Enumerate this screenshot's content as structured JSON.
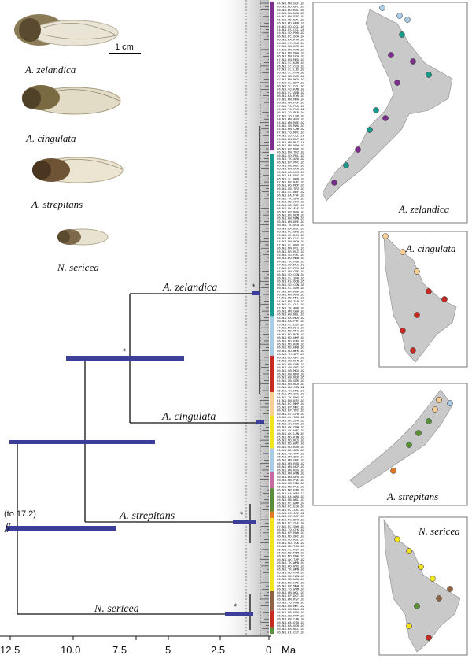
{
  "photos": {
    "scale_bar_label": "1 cm",
    "species": [
      "A. zelandica",
      "A. cingulata",
      "A. strepitans",
      "N. sericea"
    ]
  },
  "tree": {
    "clades": {
      "zelandica": "A. zelandica",
      "cingulata": "A. cingulata",
      "strepitans": "A. strepitans",
      "sericea": "N. sericea"
    },
    "root_note": "(to 17.2)",
    "axis": {
      "unit": "Ma",
      "ticks": [
        "12.5",
        "10.0",
        "7.5",
        "5",
        "2.5",
        "0"
      ]
    },
    "support_mark": "*",
    "tips": [
      "04.NZ.NN.GLF.01",
      "06.NZ.WD.OMC.01",
      "06.NZ.WD.KEL.05",
      "04.NZ.NN.NGA.03",
      "04.NZ.NN.PIG.01",
      "06.NZ.WD.BAL.02",
      "06.NZ.WD.HRB.03",
      "04.NZ.SD.COL.05",
      "04.NZ.DS.COL.20",
      "04.NZ.SD.MYD.02",
      "06.NZ.BC.OCH.04",
      "06.NZ.KA.KYR.02",
      "06.NZ.SC.CLU.04",
      "07.NZ.NN.KFR.01",
      "04.NZ.WN.RFN.01",
      "07.NZ.NN.DWA.01",
      "06.NZ.NN.UCA.01",
      "07.NZ.DN.MPA.03",
      "07.NZ.SC.KAH.01",
      "06.NZ.SC.CLU.01",
      "07.NZ.SL.LIS.02",
      "06.NZ.SC.PPA.02",
      "07.NZ.MB.RAR.02",
      "07.NZ.NN.NGA.01",
      "07.NZ.SL.BNP.03",
      "06.NZ.SL.CCL.03",
      "04.NZ.CO.KAB.02",
      "06.NZ.SC.ABB.02",
      "06.NZ.KA.KYR.01",
      "07.NZ.NN.MPA.04",
      "06.NZ.NN.PLF.01",
      "07.NZ.TO.PUR.01",
      "06.NZ.TO.PUR.02",
      "06.NZ.TO.PUR.04",
      "07.NZ.TO.LBP.01",
      "04.NZ.WN.APU.01",
      "04.NZ.WN.RBE.02",
      "04.NZ.GB.MAG.01",
      "04.NZ.WN.CAW.02",
      "07.NZ.TO.RMI.01",
      "04.NZ.SD.COL.20",
      "06.NZ.WN.BUT.09",
      "05.NZ.WN.BUT.10",
      "06.NZ.WN.HPW.01",
      "06.NZ.BP.MYD.03",
      "06.NZ.DN.TRZ.02",
      "06.NZ.SD.PNL.01",
      "06.NZ.TK.APU.02",
      "06.NZ.BP.PRC.01",
      "06.NZ.HB.ABC.02",
      "06.NZ.NN.UCA.02",
      "06.NZ.KA.LNS.01",
      "06.NZ.KA.ENS.01",
      "06.NZ.SL.BMB.07",
      "07.NZ.BR.RAI.01",
      "06.NZ.WO.MCP.01",
      "06.NZ.GB.TRZ.01",
      "07.NZ.SL.BNF.02",
      "06.NZ.KA.FYF.03",
      "04.NZ.TK.SMR.01",
      "06.NZ.WD.HPA.02",
      "06.NZ.HB.SBP.01",
      "06.NZ.DK.AVE.01",
      "06.NZ.BP.REA.01",
      "06.NZ.BR.RDM.01",
      "06.NZ.HB.MAN.01",
      "06.NZ.WN.DRE.01",
      "06.NZ.TK.UCA.03",
      "06.NZ.KA.BSC.01",
      "06.NZ.NC.GNU.01",
      "05.NZ.KE.DOH.01",
      "06.NZ.MD.CLI.01",
      "04.NZ.DN.NOW.01",
      "07.NZ.CL.KKU.02",
      "06.NZ.NN.PGL.01",
      "06.NZ.BR.RUI.01",
      "04.NZ.SD.PAC.01",
      "06.NZ.WO.MBW.01",
      "04.NZ.TK.FBR.01",
      "07.NZ.SD.NVS.02",
      "07.NZ.BP.PRC.02",
      "06.NZ.DN.CRE.01",
      "06.NZ.SD.CON.04",
      "06.NZ.CL.SRR.01",
      "06.NZ.BS.OGB.05",
      "06.NZ.SD.CON.05",
      "06.NZ.CL.SBR.04",
      "07.NZ.BR.RBR.01",
      "06.NZ.WN.APU.03",
      "04.NZ.WD.MRL.03",
      "04.NZ.NN.TLP.01",
      "06.NZ.SL.CUL.03",
      "07.NZ.TK.AKR.02",
      "06.NZ.WN.GBH.03",
      "06.NZ.HB.NEL.01",
      "04.NZ.KA.MUR.02",
      "06.NZ.KA.PYF.01",
      "05.NZ.CL.LBV.01",
      "04.NZ.NN.KHA.01",
      "06.NZ.ND.PHI.01",
      "06.NZ.ND.BCN.01",
      "06.NZ.ND.HKP.01",
      "06.NZ.ND.PAV.02",
      "06.NZ.ND.KER.01",
      "06.NZ.ND.HRB.01",
      "06.NZ.ND.WHK.01",
      "06.NZ.TK.GRT.03",
      "06.NZ.ND.GRT.02",
      "06.NZ.HB.KHN.04",
      "06.NZ.HB.GBR.03",
      "06.NZ.GB.ORI.01",
      "06.NZ.GB.MOG.02",
      "06.NZ.HB.BRO.02",
      "06.NZ.HB.KDR.05",
      "04.NZ.GB.GBR.01",
      "06.NZ.HB.KDR.01",
      "05.NZ.WN.CON.02",
      "05.NZ.TK.WPE.01",
      "05.NZ.WN.OPE.03",
      "06.NZ.TK.RWY.02",
      "01.NZ.NN.NTV.01",
      "06.NZ.NC.MKP.04",
      "05.NZ.BP.MNC.01",
      "06.NZ.BP.TRI.01",
      "06.NZ.CL.CHR.01",
      "06.NZ.CL.TAU.02",
      "06.NZ.AK.ZHR.02",
      "06.NZ.AK.HER.01",
      "06.NZ.AK.CRW.03",
      "06.NZ.AK.WAI.01",
      "06.NZ.AK.LAN.01",
      "05.NZ.ND.KIN.03",
      "06.NZ.ND.RUS.01",
      "06.NZ.ND.WAI.02",
      "06.NZ.ND.KER.01",
      "06.NZ.ND.OBR.03",
      "06.NZ.TO.TPT.02",
      "06.NZ.WN.ORI.04",
      "06.NZ.WN.GRE.01",
      "06.NZ.WN.RED.02",
      "06.NZ.WN.HOP.01",
      "06.NZ.WN.REG.01",
      "06.NZ.WN.WIN.02",
      "06.NZ.WN.ORO.01",
      "06.NZ.MB.PVE.01",
      "06.NZ.MB.MIA.03",
      "06.NZ.MB.PVE.03",
      "06.NZ.MB.PAD.01",
      "06.NZ.KA.WAA.13",
      "06.NZ.KA.WAA.01",
      "06.NZ.MB.WEL.01",
      "06.NZ.NC.WAP.04",
      "06.NZ.NC.UJA.01",
      "06.NZ.NC.JAC.01",
      "06.NZ.NC.JAC.02",
      "06.NZ.MC.CAP.01",
      "06.NZ.NC.BRW.03",
      "06.NZ.NC.CHE.04",
      "07.NZ.NC.SWH.01",
      "06.NZ.TO.CHK.02",
      "06.NZ.BP.RWH.01",
      "06.NZ.ND.OKI.03",
      "06.NZ.ND.KEL.01",
      "04.NZ.ND.TOK.02",
      "06.NZ.ND.TOK.01",
      "06.NZ.CL.RGT.03",
      "06.NZ.ND.MIM.01",
      "06.NZ.ND.PWK.03",
      "06.NZ.AK.TAP.02",
      "06.NZ.TK.WMN.01",
      "06.NZ.WO.WTS.01",
      "06.NZ.TK.WMN.02",
      "06.NZ.ND.PAH.01",
      "06.NZ.ND.MAN.01",
      "06.NZ.ND.KAW.03",
      "06.NZ.ND.WAI.03",
      "06.NZ.BP.MKW.03",
      "06.NZ.TO.WTM.01",
      "06.NZ.WN.WOL.01",
      "06.NZ.BP.DOT.01",
      "06.NZ.WN.RVT.01",
      "06.NZ.TO.MTB.01",
      "06.NZ.HB.MKT.02",
      "06.NZ.GB.NWA.02",
      "06.NZ.HB.EBU.01",
      "06.NZ.HB.PPP.01",
      "06.NZ.HB.CAR.04",
      "06.NZ.WA.OTO.01",
      "06.NZ.WA.OCH.03",
      "06.NZ.WA.BUL.03",
      "06.NZ.RI.CLY.01"
    ]
  },
  "colors": {
    "purple": "#7b2e8e",
    "teal": "#169a8c",
    "lightblue": "#a9cde8",
    "red": "#c62a22",
    "peach": "#f6cf94",
    "pink": "#c46aa3",
    "green": "#5a8f3a",
    "orange": "#e07a22",
    "yellow": "#f1e31c",
    "brown": "#8e6244",
    "node_bar": "#3b3f99"
  },
  "legend_blocks": [
    {
      "color": "purple",
      "from": 0,
      "to": 44
    },
    {
      "color": "teal",
      "from": 46,
      "to": 94
    },
    {
      "color": "lightblue",
      "from": 95,
      "to": 106
    },
    {
      "color": "red",
      "from": 107,
      "to": 117
    },
    {
      "color": "peach",
      "from": 118,
      "to": 124
    },
    {
      "color": "yellow",
      "from": 125,
      "to": 134
    },
    {
      "color": "lightblue",
      "from": 135,
      "to": 141
    },
    {
      "color": "pink",
      "from": 142,
      "to": 146
    },
    {
      "color": "green",
      "from": 147,
      "to": 153
    },
    {
      "color": "orange",
      "from": 154,
      "to": 155
    },
    {
      "color": "yellow",
      "from": 156,
      "to": 177
    },
    {
      "color": "brown",
      "from": 178,
      "to": 183
    },
    {
      "color": "red",
      "from": 184,
      "to": 188
    },
    {
      "color": "green",
      "from": 189,
      "to": 190
    }
  ],
  "maps": {
    "labels": [
      "A. zelandica",
      "A. cingulata",
      "A. strepitans",
      "N. sericea"
    ]
  }
}
